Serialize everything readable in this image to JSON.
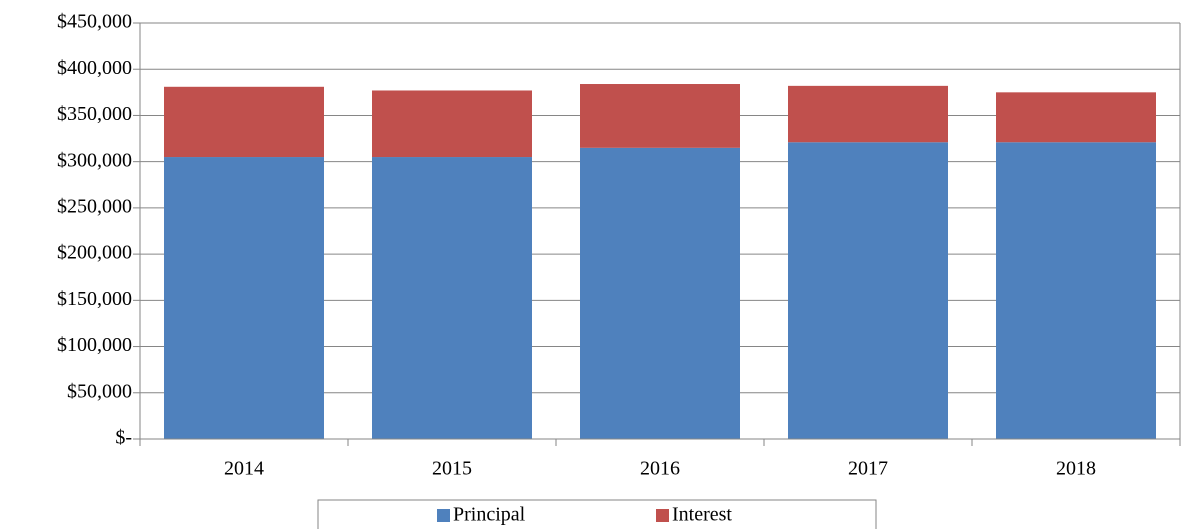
{
  "chart_data": {
    "type": "stacked_bar",
    "categories": [
      "2014",
      "2015",
      "2016",
      "2017",
      "2018"
    ],
    "series": [
      {
        "name": "Principal",
        "color": "#4f81bd",
        "values": [
          305000,
          305000,
          315000,
          321000,
          321000
        ]
      },
      {
        "name": "Interest",
        "color": "#c0504d",
        "values": [
          76000,
          72000,
          69000,
          61000,
          54000
        ]
      }
    ],
    "ylim": [
      0,
      450000
    ],
    "yticks": [
      {
        "value": 0,
        "label": "$-"
      },
      {
        "value": 50000,
        "label": "$50,000"
      },
      {
        "value": 100000,
        "label": "$100,000"
      },
      {
        "value": 150000,
        "label": "$150,000"
      },
      {
        "value": 200000,
        "label": "$200,000"
      },
      {
        "value": 250000,
        "label": "$250,000"
      },
      {
        "value": 300000,
        "label": "$300,000"
      },
      {
        "value": 350000,
        "label": "$350,000"
      },
      {
        "value": 400000,
        "label": "$400,000"
      },
      {
        "value": 450000,
        "label": "$450,000"
      }
    ],
    "grid": true,
    "legend": "bottom"
  }
}
